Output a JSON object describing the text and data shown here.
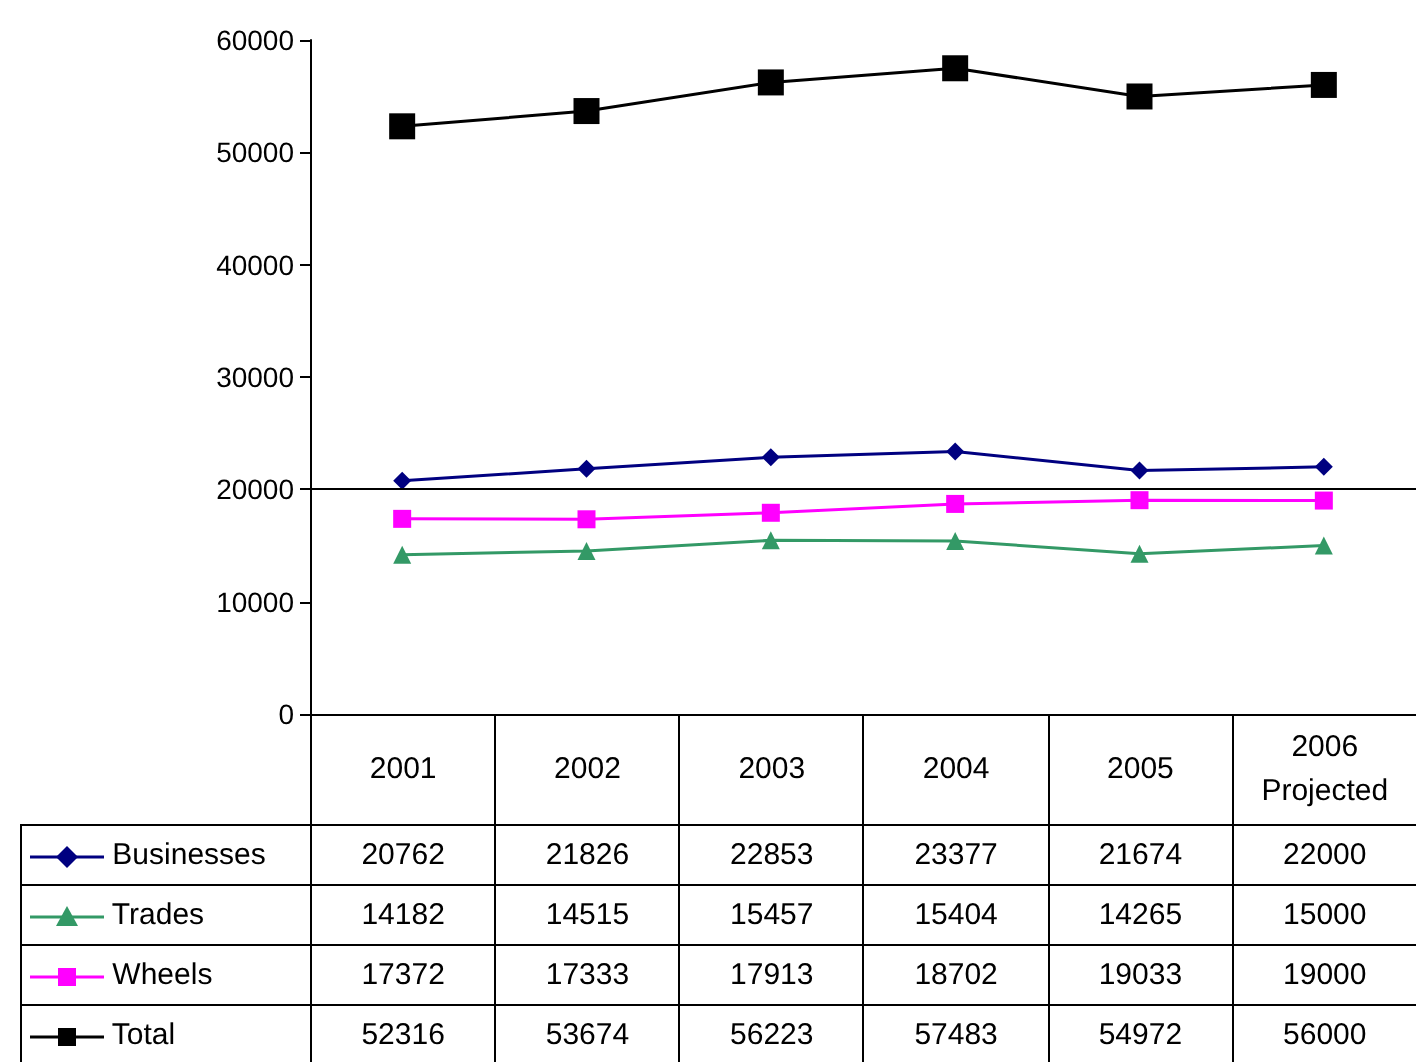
{
  "chart_data": {
    "type": "line",
    "categories": [
      "2001",
      "2002",
      "2003",
      "2004",
      "2005",
      "2006 Projected"
    ],
    "series": [
      {
        "name": "Businesses",
        "color": "#000080",
        "marker": "diamond",
        "values": [
          20762,
          21826,
          22853,
          23377,
          21674,
          22000
        ]
      },
      {
        "name": "Trades",
        "color": "#339966",
        "marker": "triangle",
        "values": [
          14182,
          14515,
          15457,
          15404,
          14265,
          15000
        ]
      },
      {
        "name": "Wheels",
        "color": "#ff00ff",
        "marker": "square",
        "values": [
          17372,
          17333,
          17913,
          18702,
          19033,
          19000
        ]
      },
      {
        "name": "Total",
        "color": "#000000",
        "marker": "square",
        "values": [
          52316,
          53674,
          56223,
          57483,
          54972,
          56000
        ]
      }
    ],
    "ylim": [
      0,
      60000
    ],
    "yticks": [
      0,
      10000,
      20000,
      30000,
      40000,
      50000,
      60000
    ],
    "ref_lines": [
      {
        "axis": "y",
        "value": 20000,
        "color": "#000000"
      }
    ],
    "grid": false,
    "legend": "bottom left",
    "data_labels": true
  }
}
